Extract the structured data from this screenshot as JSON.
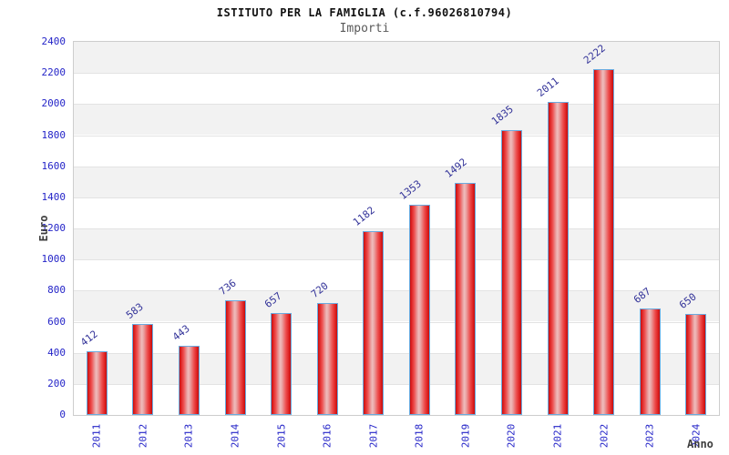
{
  "header": {
    "title": "ISTITUTO PER LA FAMIGLIA (c.f.96026810794)",
    "subtitle": "Importi"
  },
  "chart_data": {
    "type": "bar",
    "title": "ISTITUTO PER LA FAMIGLIA (c.f.96026810794)",
    "subtitle": "Importi",
    "xlabel": "Anno",
    "ylabel": "Euro",
    "categories": [
      "2011",
      "2012",
      "2013",
      "2014",
      "2015",
      "2016",
      "2017",
      "2018",
      "2019",
      "2020",
      "2021",
      "2022",
      "2023",
      "2024"
    ],
    "values": [
      412,
      583,
      443,
      736,
      657,
      720,
      1182,
      1353,
      1492,
      1835,
      2011,
      2222,
      687,
      650
    ],
    "ylim": [
      0,
      2400
    ],
    "ytick_step": 200,
    "grid": true,
    "legend": "none",
    "band_colors": [
      "#ffffff",
      "#f2f2f2"
    ],
    "colors": {
      "bar_fill_edge": "#c11010",
      "bar_fill_highlight": "#f0bcbc",
      "bar_border": "#6aabe0",
      "tick_label": "#2424c8",
      "value_label": "#333399",
      "axis_title": "#3d3d3d",
      "gridline": "#e3e3e3",
      "plot_border": "#cdcdcd"
    }
  }
}
